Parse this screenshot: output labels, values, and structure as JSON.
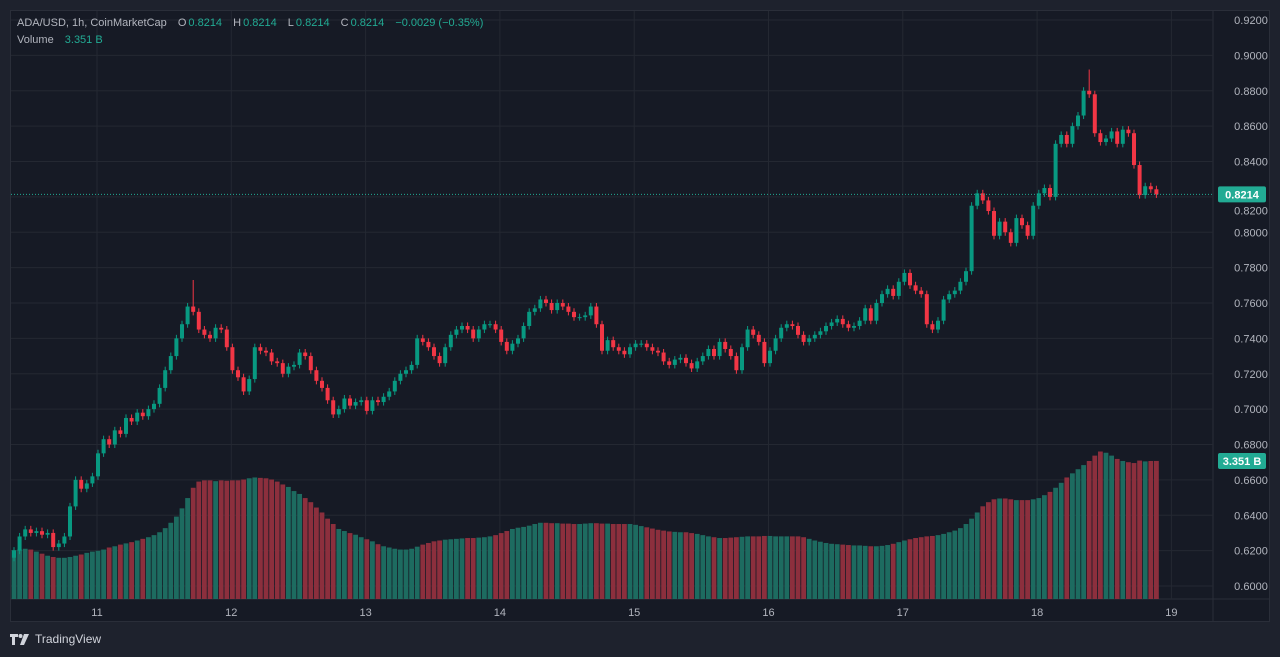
{
  "legend": {
    "symbol": "ADA/USD, 1h, CoinMarketCap",
    "open_label": "O",
    "open": "0.8214",
    "high_label": "H",
    "high": "0.8214",
    "low_label": "L",
    "low": "0.8214",
    "close_label": "C",
    "close": "0.8214",
    "change": "−0.0029 (−0.35%)",
    "volume_label": "Volume",
    "volume": "3.351 B"
  },
  "price_axis": {
    "ticks": [
      "0.9200",
      "0.9000",
      "0.8800",
      "0.8600",
      "0.8400",
      "0.8200",
      "0.8000",
      "0.7800",
      "0.7600",
      "0.7400",
      "0.7200",
      "0.7000",
      "0.6800",
      "0.6600",
      "0.6400",
      "0.6200",
      "0.6000"
    ],
    "last_price_label": "0.8214",
    "last_volume_label": "3.351 B"
  },
  "time_axis": {
    "ticks": [
      "11",
      "12",
      "13",
      "14",
      "15",
      "16",
      "17",
      "18",
      "19"
    ]
  },
  "brand": "TradingView",
  "colors": {
    "up": "#089981",
    "down": "#f23645",
    "vol_up": "#1d6b60",
    "vol_down": "#8c2f3d",
    "last_price": "#22ab94",
    "grid": "#242832",
    "background": "#161a25"
  },
  "chart_data": {
    "type": "candlestick",
    "interval": "1h",
    "ylim": [
      0.6,
      0.92
    ],
    "grid": true,
    "closes": [
      0.62,
      0.628,
      0.632,
      0.63,
      0.631,
      0.629,
      0.63,
      0.622,
      0.624,
      0.628,
      0.645,
      0.66,
      0.655,
      0.658,
      0.662,
      0.675,
      0.683,
      0.68,
      0.688,
      0.686,
      0.695,
      0.693,
      0.698,
      0.696,
      0.7,
      0.703,
      0.712,
      0.722,
      0.73,
      0.74,
      0.748,
      0.758,
      0.755,
      0.745,
      0.742,
      0.74,
      0.746,
      0.745,
      0.735,
      0.722,
      0.718,
      0.71,
      0.717,
      0.735,
      0.733,
      0.732,
      0.727,
      0.726,
      0.72,
      0.724,
      0.725,
      0.732,
      0.73,
      0.722,
      0.716,
      0.712,
      0.705,
      0.697,
      0.7,
      0.706,
      0.702,
      0.704,
      0.705,
      0.699,
      0.705,
      0.704,
      0.707,
      0.71,
      0.716,
      0.72,
      0.722,
      0.725,
      0.74,
      0.738,
      0.735,
      0.73,
      0.726,
      0.735,
      0.742,
      0.745,
      0.747,
      0.745,
      0.74,
      0.745,
      0.748,
      0.748,
      0.745,
      0.738,
      0.733,
      0.737,
      0.74,
      0.747,
      0.755,
      0.757,
      0.762,
      0.76,
      0.756,
      0.76,
      0.758,
      0.755,
      0.752,
      0.752,
      0.753,
      0.758,
      0.748,
      0.733,
      0.739,
      0.735,
      0.733,
      0.731,
      0.735,
      0.737,
      0.737,
      0.735,
      0.733,
      0.732,
      0.727,
      0.725,
      0.728,
      0.729,
      0.726,
      0.723,
      0.727,
      0.73,
      0.734,
      0.73,
      0.738,
      0.734,
      0.73,
      0.722,
      0.735,
      0.745,
      0.742,
      0.738,
      0.726,
      0.733,
      0.74,
      0.746,
      0.748,
      0.747,
      0.742,
      0.738,
      0.74,
      0.742,
      0.744,
      0.747,
      0.749,
      0.751,
      0.748,
      0.746,
      0.747,
      0.75,
      0.757,
      0.75,
      0.76,
      0.765,
      0.768,
      0.764,
      0.772,
      0.777,
      0.77,
      0.767,
      0.765,
      0.748,
      0.745,
      0.75,
      0.762,
      0.765,
      0.767,
      0.772,
      0.778,
      0.815,
      0.822,
      0.818,
      0.812,
      0.798,
      0.806,
      0.8,
      0.794,
      0.808,
      0.804,
      0.798,
      0.815,
      0.822,
      0.825,
      0.82,
      0.85,
      0.855,
      0.85,
      0.86,
      0.866,
      0.88,
      0.878,
      0.856,
      0.851,
      0.853,
      0.857,
      0.85,
      0.858,
      0.856,
      0.838,
      0.821,
      0.826,
      0.8243,
      0.8214
    ],
    "high_overrides": {
      "32": 0.773,
      "192": 0.892
    },
    "volume_unit": "B",
    "volumes": [
      1.19,
      1.2,
      1.22,
      1.2,
      1.15,
      1.1,
      1.05,
      1.02,
      1.0,
      1.0,
      1.02,
      1.05,
      1.08,
      1.12,
      1.15,
      1.17,
      1.2,
      1.25,
      1.28,
      1.32,
      1.35,
      1.38,
      1.42,
      1.46,
      1.5,
      1.55,
      1.62,
      1.72,
      1.85,
      2.0,
      2.2,
      2.45,
      2.7,
      2.85,
      2.88,
      2.88,
      2.86,
      2.88,
      2.87,
      2.88,
      2.88,
      2.9,
      2.93,
      2.95,
      2.94,
      2.93,
      2.9,
      2.85,
      2.78,
      2.72,
      2.62,
      2.55,
      2.45,
      2.35,
      2.22,
      2.1,
      1.95,
      1.82,
      1.7,
      1.65,
      1.6,
      1.56,
      1.5,
      1.45,
      1.4,
      1.33,
      1.28,
      1.25,
      1.22,
      1.2,
      1.2,
      1.22,
      1.27,
      1.32,
      1.36,
      1.4,
      1.42,
      1.44,
      1.45,
      1.46,
      1.47,
      1.48,
      1.48,
      1.49,
      1.5,
      1.52,
      1.55,
      1.6,
      1.65,
      1.7,
      1.73,
      1.75,
      1.78,
      1.82,
      1.85,
      1.85,
      1.84,
      1.84,
      1.83,
      1.83,
      1.82,
      1.82,
      1.83,
      1.84,
      1.84,
      1.83,
      1.83,
      1.82,
      1.82,
      1.82,
      1.82,
      1.8,
      1.77,
      1.74,
      1.71,
      1.68,
      1.66,
      1.64,
      1.63,
      1.62,
      1.62,
      1.6,
      1.58,
      1.55,
      1.52,
      1.5,
      1.48,
      1.48,
      1.49,
      1.5,
      1.51,
      1.52,
      1.52,
      1.52,
      1.53,
      1.53,
      1.52,
      1.52,
      1.52,
      1.52,
      1.52,
      1.5,
      1.46,
      1.42,
      1.39,
      1.36,
      1.34,
      1.33,
      1.32,
      1.31,
      1.3,
      1.3,
      1.29,
      1.28,
      1.28,
      1.29,
      1.31,
      1.34,
      1.38,
      1.42,
      1.45,
      1.48,
      1.5,
      1.52,
      1.53,
      1.55,
      1.58,
      1.62,
      1.66,
      1.72,
      1.82,
      1.95,
      2.1,
      2.25,
      2.35,
      2.42,
      2.44,
      2.44,
      2.42,
      2.4,
      2.4,
      2.4,
      2.42,
      2.45,
      2.52,
      2.6,
      2.7,
      2.82,
      2.95,
      3.05,
      3.15,
      3.25,
      3.35,
      3.48,
      3.58,
      3.55,
      3.48,
      3.4,
      3.35,
      3.32,
      3.3,
      3.36,
      3.34,
      3.35,
      3.351
    ]
  }
}
